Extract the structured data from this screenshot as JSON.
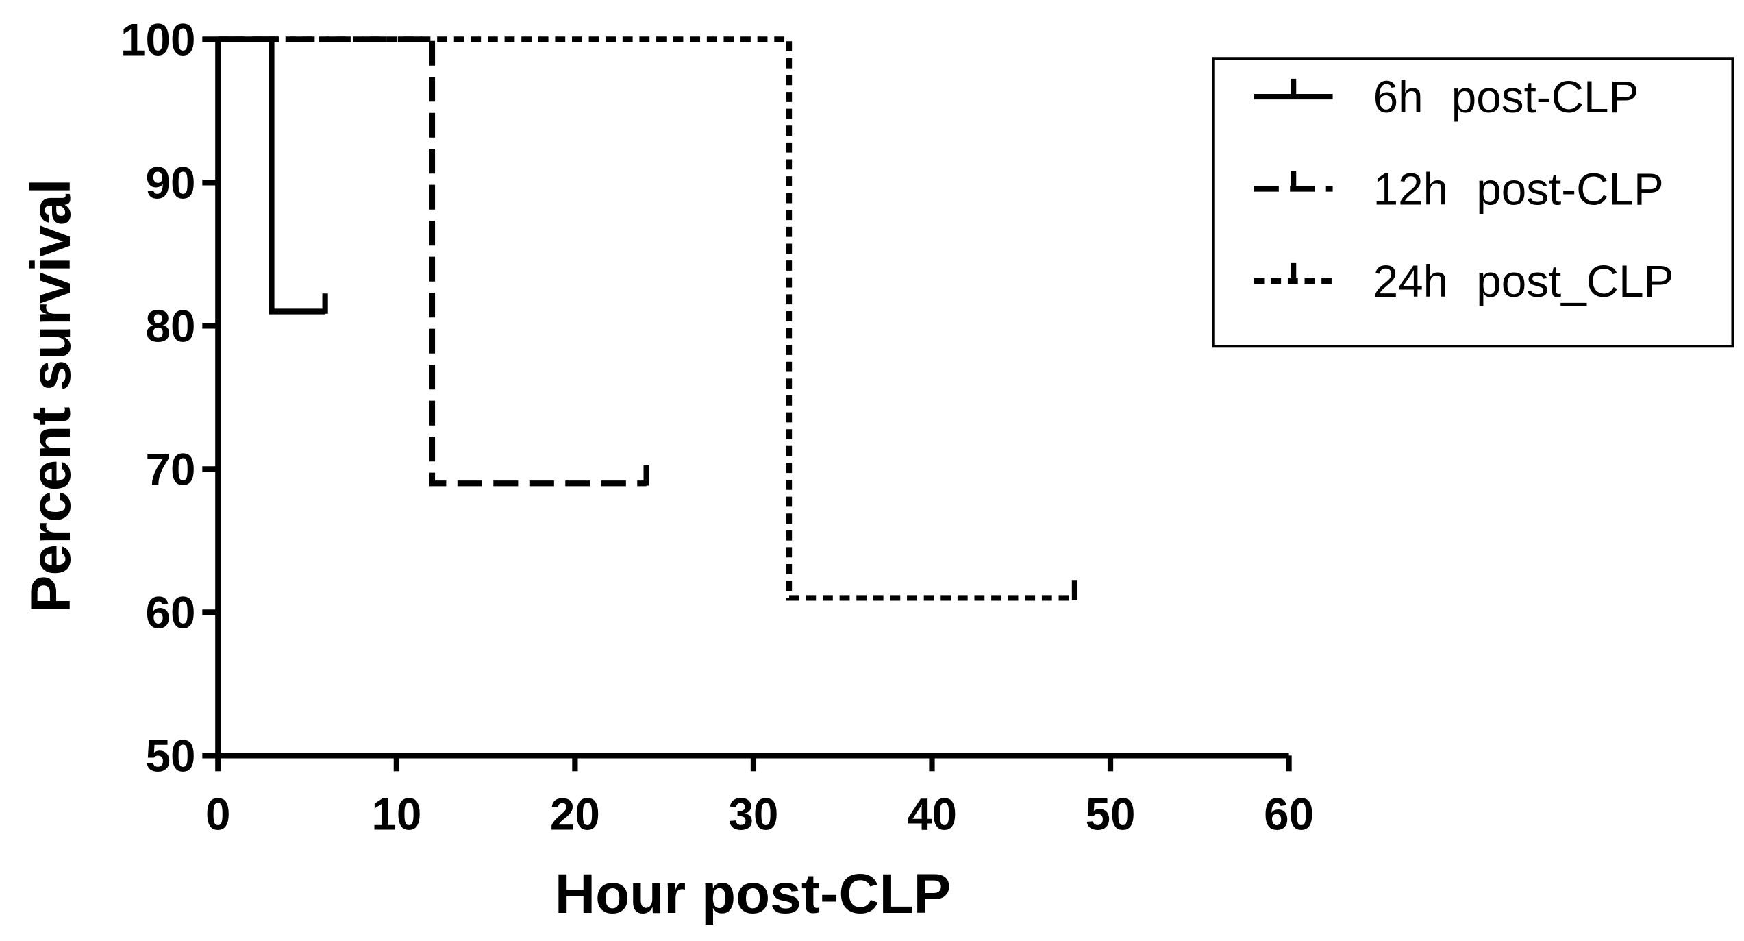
{
  "chart_data": {
    "type": "line",
    "xlabel": "Hour post-CLP",
    "ylabel": "Percent survival",
    "xlim": [
      0,
      60
    ],
    "ylim": [
      50,
      100
    ],
    "xticks": [
      0,
      10,
      20,
      30,
      40,
      50,
      60
    ],
    "yticks": [
      50,
      60,
      70,
      80,
      90,
      100
    ],
    "legend": "upper right",
    "step": true,
    "censor_ticks": true,
    "series": [
      {
        "name": "6h post-CLP",
        "color": "#000000",
        "dash": "solid",
        "x": [
          0,
          3,
          3,
          6
        ],
        "values": [
          100,
          100,
          81,
          81
        ]
      },
      {
        "name": "12h post-CLP",
        "color": "#000000",
        "dash": "dashed",
        "x": [
          0,
          12,
          12,
          24
        ],
        "values": [
          100,
          100,
          69,
          69
        ]
      },
      {
        "name": "24h post_CLP",
        "color": "#000000",
        "dash": "dotted",
        "x": [
          0,
          32,
          32,
          48
        ],
        "values": [
          100,
          100,
          61,
          61
        ]
      }
    ]
  }
}
